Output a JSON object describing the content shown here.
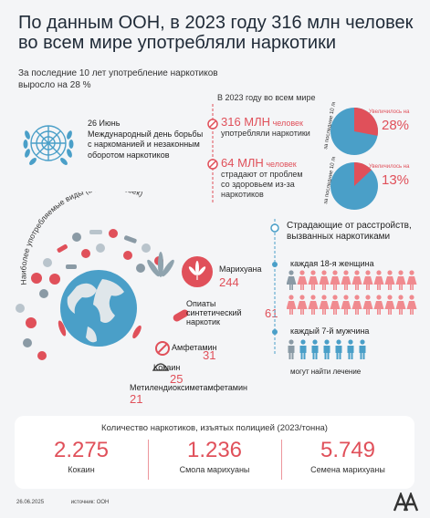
{
  "title": "По данным ООН, в 2023 году 316 млн человек во всем мире употребляли наркотики",
  "subtitle": "За последние 10 лет употребление наркотиков выросло на 28 %",
  "date_block": {
    "date": "26 Июнь",
    "text": "Международный день борьбы с наркоманией и незаконным оборотом наркотиков"
  },
  "world_stats": {
    "header": "В 2023 году во всем мире",
    "item1_big": "316 МЛН",
    "item1_small": "человек",
    "item1_desc": "употребляли наркотики",
    "item2_big": "64 МЛН",
    "item2_small": "человек",
    "item2_desc": "страдают от проблем со здоровьем из-за наркотиков",
    "pie1_axis": "за последние 10 лет",
    "pie1_label": "Увеличилось на",
    "pie1_value": "28%",
    "pie1_fraction": 0.28,
    "pie2_axis": "за последние 10 лет",
    "pie2_label": "Увеличилось на",
    "pie2_value": "13%",
    "pie2_fraction": 0.13
  },
  "drugs": {
    "arc_label": "Наиболее употребляемые виды (в млн человек)",
    "marijuana_label": "Марихуана",
    "marijuana_value": "244",
    "opioids_label": "Опиаты синтетический наркотик",
    "opioids_value": "61",
    "amphetamine_label": "Амфетамин",
    "amphetamine_value": "31",
    "cocaine_label": "Кокаин",
    "cocaine_value": "25",
    "mdma_label": "Метилендиоксиметамфетамин",
    "mdma_value": "21"
  },
  "disorders": {
    "header": "Страдающие от расстройств, вызванных наркотиками",
    "women_label": "каждая 18-я женщина",
    "men_label": "каждый 7-й мужчина",
    "treatment_label": "могут найти лечение"
  },
  "seizures": {
    "title": "Количество наркотиков, изъятых полицией (2023/тонна)",
    "items": [
      {
        "value": "2.275",
        "label": "Кокаин"
      },
      {
        "value": "1.236",
        "label": "Смола марихуаны"
      },
      {
        "value": "5.749",
        "label": "Семена марихуаны"
      }
    ]
  },
  "footer": {
    "date": "26.06.2025",
    "source": "источник: ООН"
  },
  "colors": {
    "accent": "#e0505a",
    "blue": "#4a9fc8",
    "light_blue": "#9cc7df"
  }
}
